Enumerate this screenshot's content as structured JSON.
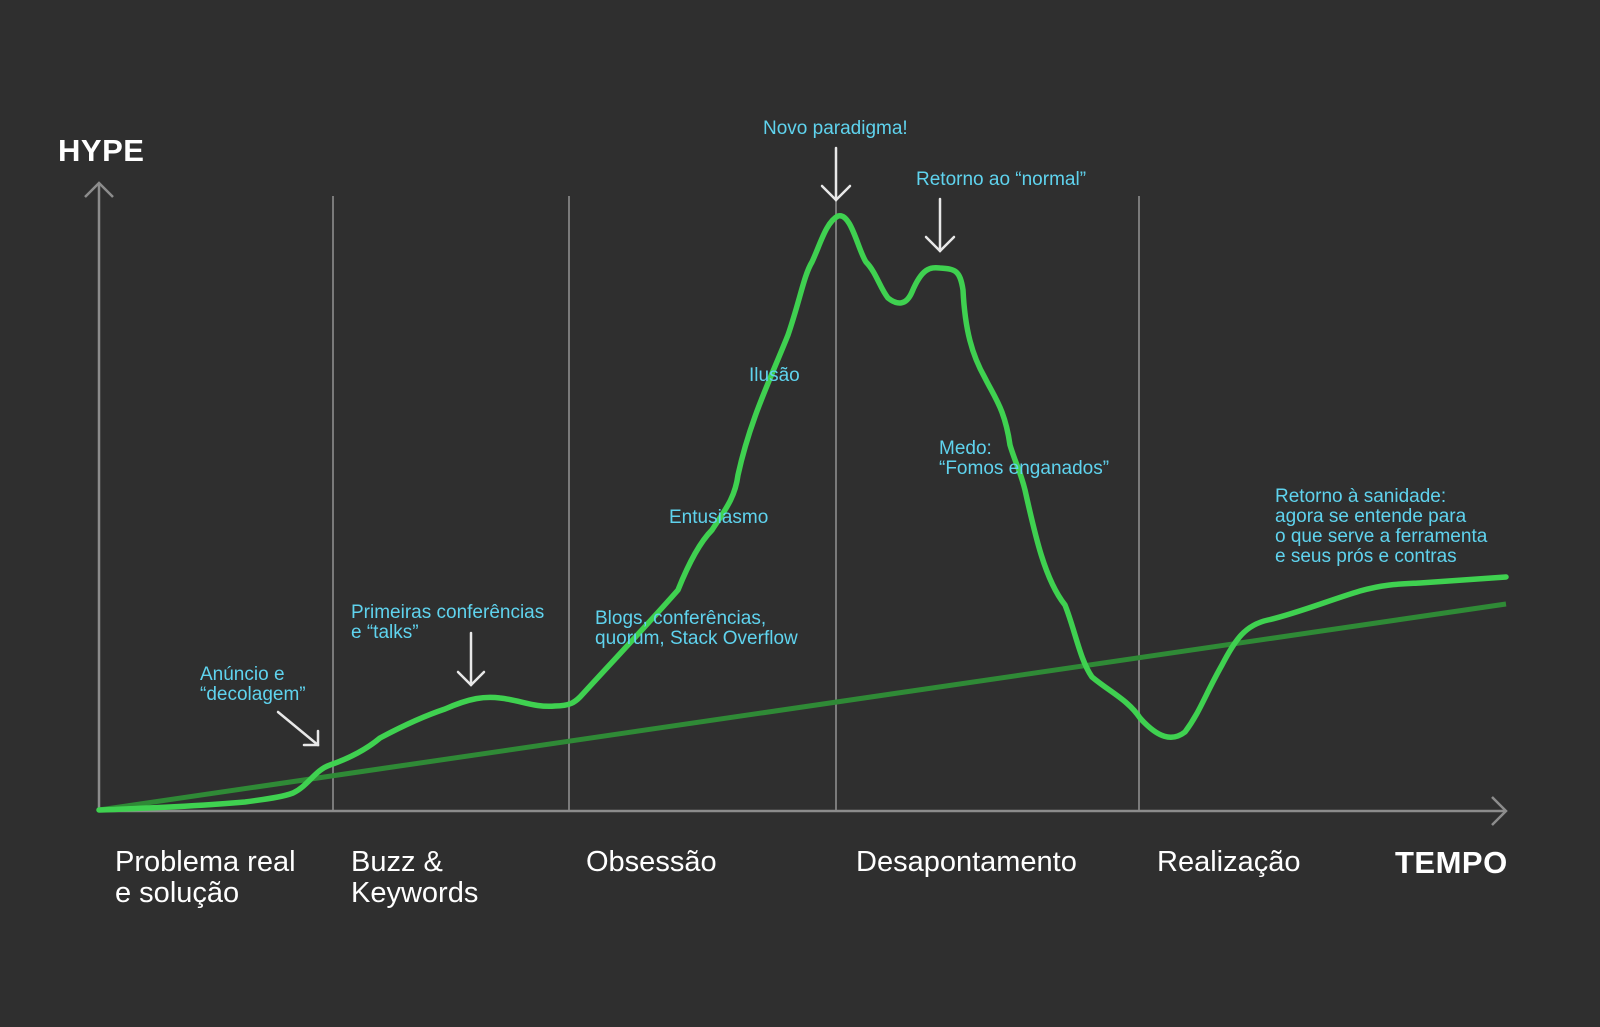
{
  "colors": {
    "background": "#2f2f2f",
    "axis": "#8c8c8c",
    "curve": "#3fd150",
    "baseline": "#2f8a36",
    "annotation": "#5fd3ee",
    "text": "#ffffff"
  },
  "axes": {
    "y_label": "HYPE",
    "x_label": "TEMPO"
  },
  "phases": [
    "Problema real\ne solução",
    "Buzz &\nKeywords",
    "Obsessão",
    "Desapontamento",
    "Realização"
  ],
  "annotations": [
    {
      "text": "Anúncio e\n“decolagem”",
      "arrow": "arrow-diagonal-icon"
    },
    {
      "text": "Primeiras conferências\ne “talks”",
      "arrow": "arrow-down-icon"
    },
    {
      "text": "Blogs, conferências,\nquorum, Stack Overflow"
    },
    {
      "text": "Entusiasmo"
    },
    {
      "text": "Ilusão"
    },
    {
      "text": "Novo paradigma!",
      "arrow": "arrow-down-icon"
    },
    {
      "text": "Retorno ao “normal”",
      "arrow": "arrow-down-icon"
    },
    {
      "text": "Medo:\n“Fomos enganados”"
    },
    {
      "text": "Retorno à sanidade:\nagora se entende para\no que serve a ferramenta\ne seus prós e contras"
    }
  ]
}
